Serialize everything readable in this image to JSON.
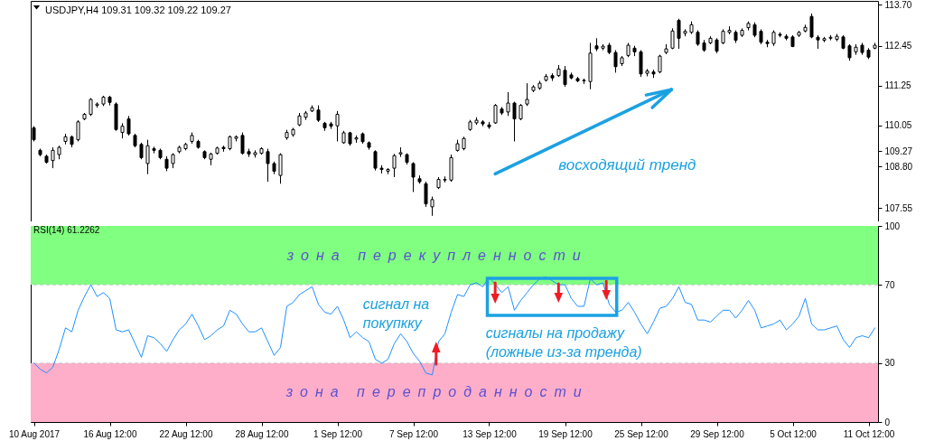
{
  "chart_data": [
    {
      "type": "candlestick",
      "title": "USDJPY,H4 109.31 109.32 109.22 109.27",
      "color": "#000000",
      "categories": [
        null,
        null,
        null,
        null,
        null,
        null,
        null,
        null,
        null,
        null,
        null,
        null,
        null,
        null,
        null,
        null,
        null,
        null,
        null,
        null,
        null,
        null,
        null,
        null,
        null,
        null,
        null,
        null,
        null,
        null,
        null,
        null,
        null,
        null,
        null,
        null,
        null,
        null,
        null,
        null,
        null,
        null,
        null,
        null,
        null,
        null,
        null,
        null,
        null,
        null,
        null,
        null,
        null,
        null,
        null,
        null,
        null,
        null,
        null,
        null,
        null,
        null,
        null,
        null,
        null,
        null,
        null,
        null,
        null,
        null,
        null,
        null,
        null,
        null,
        null,
        null,
        null,
        null,
        null,
        null,
        null,
        null,
        null,
        null,
        null,
        null,
        null,
        null,
        null,
        null,
        null,
        null,
        null,
        null,
        null,
        null,
        null,
        null,
        null,
        null,
        null,
        null,
        null,
        null,
        null,
        null,
        null,
        null,
        null,
        null,
        null,
        null,
        null,
        null,
        null,
        null,
        null,
        null,
        null,
        null,
        null,
        null,
        null,
        null,
        null,
        null,
        null,
        null,
        null,
        null,
        null,
        null,
        null,
        null
      ],
      "ohlc": [
        [
          109.97,
          110.02,
          109.56,
          109.61
        ],
        [
          109.29,
          109.34,
          109.11,
          109.16
        ],
        [
          109.11,
          109.16,
          108.89,
          108.93
        ],
        [
          108.98,
          109.38,
          108.75,
          109.29
        ],
        [
          109.16,
          109.43,
          109.02,
          109.38
        ],
        [
          109.56,
          109.79,
          109.47,
          109.7
        ],
        [
          109.7,
          109.74,
          109.38,
          109.47
        ],
        [
          109.61,
          110.2,
          109.56,
          110.15
        ],
        [
          110.24,
          110.42,
          110.2,
          110.38
        ],
        [
          110.38,
          110.87,
          110.33,
          110.83
        ],
        [
          110.65,
          110.74,
          110.58,
          110.69
        ],
        [
          110.69,
          110.94,
          110.63,
          110.9
        ],
        [
          110.9,
          110.94,
          110.65,
          110.74
        ],
        [
          110.69,
          110.74,
          109.88,
          109.92
        ],
        [
          109.83,
          110.11,
          109.65,
          110.02
        ],
        [
          110.24,
          110.33,
          109.74,
          109.79
        ],
        [
          109.74,
          109.79,
          109.38,
          109.43
        ],
        [
          109.47,
          109.52,
          109.02,
          109.07
        ],
        [
          108.89,
          109.61,
          108.57,
          109.43
        ],
        [
          109.34,
          109.4,
          109.2,
          109.29
        ],
        [
          109.29,
          109.34,
          109.02,
          109.07
        ],
        [
          109.02,
          109.11,
          108.66,
          108.75
        ],
        [
          108.89,
          109.2,
          108.75,
          109.16
        ],
        [
          109.25,
          109.43,
          109.2,
          109.38
        ],
        [
          109.34,
          109.52,
          109.29,
          109.47
        ],
        [
          109.56,
          109.83,
          109.49,
          109.74
        ],
        [
          109.56,
          109.61,
          109.34,
          109.38
        ],
        [
          109.25,
          109.29,
          109.02,
          109.07
        ],
        [
          109.02,
          109.22,
          108.84,
          109.18
        ],
        [
          109.2,
          109.4,
          109.16,
          109.36
        ],
        [
          109.38,
          109.43,
          109.25,
          109.34
        ],
        [
          109.34,
          109.74,
          109.29,
          109.7
        ],
        [
          109.65,
          109.74,
          109.56,
          109.7
        ],
        [
          109.74,
          109.83,
          109.16,
          109.2
        ],
        [
          109.25,
          109.34,
          109.09,
          109.18
        ],
        [
          109.16,
          109.29,
          109.07,
          109.22
        ],
        [
          109.2,
          109.38,
          109.16,
          109.34
        ],
        [
          109.25,
          109.34,
          108.34,
          108.89
        ],
        [
          108.89,
          108.95,
          108.57,
          108.66
        ],
        [
          108.53,
          109.2,
          108.28,
          109.16
        ],
        [
          109.67,
          109.91,
          109.61,
          109.83
        ],
        [
          109.76,
          109.97,
          109.7,
          109.92
        ],
        [
          110.06,
          110.42,
          110.02,
          110.33
        ],
        [
          110.29,
          110.48,
          110.21,
          110.42
        ],
        [
          110.48,
          110.65,
          110.45,
          110.58
        ],
        [
          110.51,
          110.65,
          110.15,
          110.2
        ],
        [
          110.11,
          110.15,
          109.88,
          109.97
        ],
        [
          110.09,
          110.15,
          109.94,
          110.02
        ],
        [
          110.03,
          110.48,
          109.56,
          110.38
        ],
        [
          109.52,
          109.88,
          109.49,
          109.82
        ],
        [
          109.82,
          109.85,
          109.43,
          109.49
        ],
        [
          109.63,
          109.74,
          109.52,
          109.67
        ],
        [
          109.79,
          109.83,
          109.49,
          109.55
        ],
        [
          109.52,
          109.56,
          109.31,
          109.38
        ],
        [
          109.25,
          109.29,
          108.68,
          108.75
        ],
        [
          108.75,
          108.84,
          108.59,
          108.71
        ],
        [
          108.66,
          108.75,
          108.57,
          108.71
        ],
        [
          108.75,
          109.18,
          108.48,
          109.13
        ],
        [
          109.18,
          109.38,
          109.09,
          109.22
        ],
        [
          109.16,
          109.2,
          108.86,
          108.93
        ],
        [
          108.89,
          108.93,
          108.03,
          108.48
        ],
        [
          108.43,
          108.53,
          108.28,
          108.34
        ],
        [
          108.28,
          108.34,
          107.58,
          107.67
        ],
        [
          107.58,
          107.89,
          107.31,
          107.8
        ],
        [
          108.16,
          108.48,
          108.12,
          108.41
        ],
        [
          108.39,
          108.5,
          108.32,
          108.41
        ],
        [
          108.39,
          109.16,
          108.34,
          109.07
        ],
        [
          109.29,
          109.61,
          109.25,
          109.49
        ],
        [
          109.34,
          109.7,
          109.29,
          109.65
        ],
        [
          109.92,
          110.21,
          109.88,
          110.15
        ],
        [
          110.12,
          110.29,
          110.06,
          110.2
        ],
        [
          110.15,
          110.2,
          110.02,
          110.09
        ],
        [
          110.06,
          110.15,
          109.94,
          110.0
        ],
        [
          110.12,
          110.69,
          110.09,
          110.65
        ],
        [
          110.54,
          110.6,
          110.36,
          110.42
        ],
        [
          110.45,
          111.05,
          110.33,
          110.72
        ],
        [
          110.72,
          110.76,
          109.56,
          110.24
        ],
        [
          110.24,
          110.69,
          110.2,
          110.65
        ],
        [
          110.69,
          111.32,
          110.63,
          110.83
        ],
        [
          111.1,
          111.26,
          111.05,
          111.21
        ],
        [
          111.17,
          111.39,
          111.12,
          111.32
        ],
        [
          111.41,
          111.6,
          111.37,
          111.53
        ],
        [
          111.55,
          111.62,
          111.39,
          111.48
        ],
        [
          111.55,
          111.87,
          111.51,
          111.75
        ],
        [
          111.71,
          111.84,
          111.21,
          111.28
        ],
        [
          111.57,
          111.64,
          111.44,
          111.48
        ],
        [
          111.46,
          111.51,
          111.35,
          111.39
        ],
        [
          111.39,
          111.46,
          111.3,
          111.41
        ],
        [
          111.37,
          112.54,
          111.14,
          112.23
        ],
        [
          112.45,
          112.68,
          112.29,
          112.36
        ],
        [
          112.38,
          112.5,
          112.32,
          112.44
        ],
        [
          112.47,
          112.54,
          112.2,
          112.25
        ],
        [
          112.25,
          112.32,
          111.64,
          111.82
        ],
        [
          111.91,
          112.14,
          111.84,
          112.09
        ],
        [
          112.16,
          112.54,
          112.11,
          112.47
        ],
        [
          112.38,
          112.45,
          112.14,
          112.27
        ],
        [
          112.27,
          112.32,
          111.51,
          111.6
        ],
        [
          111.62,
          111.75,
          111.53,
          111.69
        ],
        [
          111.66,
          111.73,
          111.48,
          111.6
        ],
        [
          111.66,
          112.18,
          111.62,
          112.14
        ],
        [
          112.25,
          112.5,
          112.2,
          112.36
        ],
        [
          112.38,
          112.98,
          112.35,
          112.9
        ],
        [
          113.22,
          113.27,
          112.36,
          112.68
        ],
        [
          112.83,
          112.95,
          112.74,
          112.89
        ],
        [
          112.86,
          113.19,
          112.81,
          113.09
        ],
        [
          112.86,
          112.92,
          112.45,
          112.5
        ],
        [
          112.54,
          112.63,
          112.27,
          112.32
        ],
        [
          112.54,
          112.74,
          112.5,
          112.68
        ],
        [
          112.63,
          112.68,
          112.23,
          112.29
        ],
        [
          112.54,
          112.95,
          112.5,
          112.89
        ],
        [
          112.86,
          113.04,
          112.8,
          112.92
        ],
        [
          112.86,
          112.92,
          112.54,
          112.62
        ],
        [
          112.77,
          112.98,
          112.72,
          112.92
        ],
        [
          113.0,
          113.19,
          112.92,
          113.13
        ],
        [
          113.09,
          113.16,
          112.71,
          112.77
        ],
        [
          112.89,
          112.95,
          112.5,
          112.56
        ],
        [
          112.56,
          112.63,
          112.41,
          112.52
        ],
        [
          112.52,
          112.92,
          112.45,
          112.86
        ],
        [
          112.8,
          112.86,
          112.71,
          112.77
        ],
        [
          112.74,
          112.8,
          112.62,
          112.68
        ],
        [
          112.72,
          112.77,
          112.41,
          112.43
        ],
        [
          112.77,
          112.9,
          112.72,
          112.86
        ],
        [
          112.9,
          113.09,
          112.86,
          113.01
        ],
        [
          113.34,
          113.43,
          112.68,
          112.72
        ],
        [
          112.71,
          112.77,
          112.36,
          112.63
        ],
        [
          112.62,
          112.72,
          112.56,
          112.67
        ],
        [
          112.68,
          112.77,
          112.62,
          112.71
        ],
        [
          112.65,
          112.81,
          112.59,
          112.74
        ],
        [
          112.72,
          112.77,
          112.35,
          112.38
        ],
        [
          112.45,
          112.5,
          112.0,
          112.09
        ],
        [
          112.27,
          112.5,
          112.18,
          112.41
        ],
        [
          112.47,
          112.54,
          112.18,
          112.25
        ],
        [
          112.32,
          112.38,
          112.05,
          112.11
        ],
        [
          112.38,
          112.54,
          112.35,
          112.47
        ]
      ],
      "ylim": [
        107.14,
        113.81
      ],
      "yticks": [
        107.55,
        {
          "value": 108.8,
          "label": "108.80"
        },
        109.27,
        110.05,
        111.25,
        112.45,
        {
          "value": 113.7,
          "label": "113.70"
        }
      ],
      "tick_labels": "y",
      "annotations": [
        "восходящий тренд"
      ]
    },
    {
      "type": "line",
      "title": "RSI(14) 61.2262",
      "categories": [
        "10 Aug 2017",
        null,
        null,
        null,
        null,
        null,
        null,
        null,
        null,
        null,
        null,
        null,
        "16 Aug 12:00",
        null,
        null,
        null,
        null,
        null,
        null,
        null,
        null,
        null,
        null,
        null,
        "22 Aug 12:00",
        null,
        null,
        null,
        null,
        null,
        null,
        null,
        null,
        null,
        null,
        null,
        "28 Aug 12:00",
        null,
        null,
        null,
        null,
        null,
        null,
        null,
        null,
        null,
        null,
        null,
        "1 Sep 12:00",
        null,
        null,
        null,
        null,
        null,
        null,
        null,
        null,
        null,
        null,
        null,
        "7 Sep 12:00",
        null,
        null,
        null,
        null,
        null,
        null,
        null,
        null,
        null,
        null,
        null,
        "13 Sep 12:00",
        null,
        null,
        null,
        null,
        null,
        null,
        null,
        null,
        null,
        null,
        null,
        "19 Sep 12:00",
        null,
        null,
        null,
        null,
        null,
        null,
        null,
        null,
        null,
        null,
        null,
        "25 Sep 12:00",
        null,
        null,
        null,
        null,
        null,
        null,
        null,
        null,
        null,
        null,
        null,
        "29 Sep 12:00",
        null,
        null,
        null,
        null,
        null,
        null,
        null,
        null,
        null,
        null,
        null,
        "5 Oct 12:00",
        null,
        null,
        null,
        null,
        null,
        null,
        null,
        null,
        null,
        null,
        null,
        "11 Oct 12:00",
        null
      ],
      "series": [
        {
          "color": "#1e90ff",
          "values": [
            30,
            27,
            25,
            28,
            37,
            48,
            46,
            57,
            64,
            70,
            64,
            66,
            63,
            47,
            46,
            47,
            40,
            33,
            44,
            43,
            40,
            36,
            42,
            47,
            50,
            55,
            49,
            42,
            44,
            47,
            49,
            57,
            55,
            50,
            46,
            46,
            48,
            41,
            34,
            38,
            59,
            61,
            65,
            67,
            69,
            60,
            56,
            55,
            59,
            52,
            43,
            46,
            43,
            41,
            32,
            30,
            32,
            40,
            45,
            41,
            35,
            31,
            25,
            24,
            41,
            45,
            56,
            65,
            64,
            70,
            71,
            69,
            74,
            70,
            66,
            69,
            57,
            62,
            66,
            70,
            73,
            74,
            72,
            70,
            70,
            63,
            59,
            59,
            73,
            70,
            71,
            60,
            56,
            57,
            61,
            56,
            50,
            45,
            51,
            58,
            59,
            63,
            69,
            61,
            60,
            52,
            52,
            51,
            54,
            57,
            57,
            53,
            57,
            62,
            57,
            48,
            49,
            50,
            52,
            47,
            50,
            54,
            63,
            50,
            47,
            47,
            48,
            49,
            42,
            38,
            43,
            44,
            43,
            48
          ]
        }
      ],
      "ylim": [
        0,
        100
      ],
      "yticks": [
        0,
        30,
        70,
        100
      ],
      "bands": [
        {
          "axis": "y",
          "from": 70,
          "to": 100,
          "label": "зона перекупленности",
          "color": "#80ff80"
        },
        {
          "axis": "y",
          "from": 0,
          "to": 30,
          "label": "зона перепроданности",
          "color": "#ffaec9"
        }
      ],
      "ref_lines": [
        {
          "axis": "y",
          "value": 70,
          "color": "#c0c0c0",
          "line_style": "dashed"
        },
        {
          "axis": "y",
          "value": 30,
          "color": "#c0c0c0",
          "line_style": "dashed"
        }
      ],
      "annotations": [
        "сигнал на\nпокупкку",
        "сигналы на продажу\n(ложные из-за тренда)"
      ]
    }
  ]
}
